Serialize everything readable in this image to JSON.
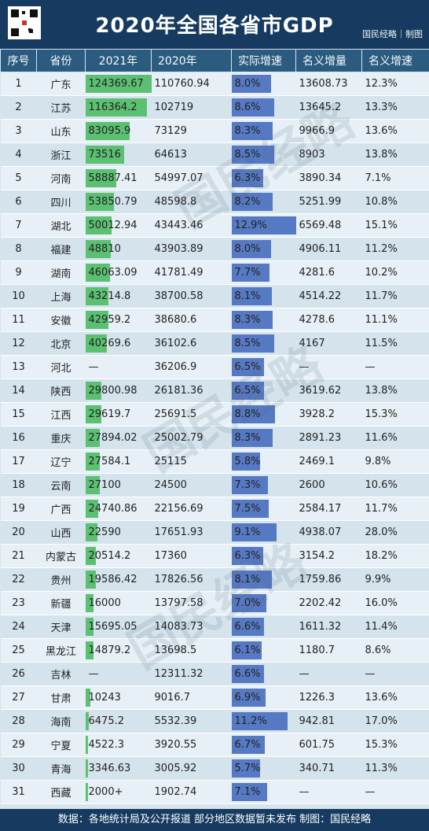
{
  "title": "2020年全国各省市GDP",
  "brand": "国民经略｜制图",
  "columns": [
    "序号",
    "省份",
    "2021年",
    "2020年",
    "实际增速",
    "名义增量",
    "名义增速"
  ],
  "footer": "数据：各地统计局及公开报道 部分地区数据暂未发布 制图：国民经略",
  "watermark": "国民经略",
  "rows": [
    {
      "seq": "1",
      "prov": "广东",
      "v2021": "124369.67",
      "v2020": "110760.94",
      "real": "8.0%",
      "nom_inc": "13608.73",
      "nom_rate": "12.3%"
    },
    {
      "seq": "2",
      "prov": "江苏",
      "v2021": "116364.2",
      "v2020": "102719",
      "real": "8.6%",
      "nom_inc": "13645.2",
      "nom_rate": "13.3%"
    },
    {
      "seq": "3",
      "prov": "山东",
      "v2021": "83095.9",
      "v2020": "73129",
      "real": "8.3%",
      "nom_inc": "9966.9",
      "nom_rate": "13.6%"
    },
    {
      "seq": "4",
      "prov": "浙江",
      "v2021": "73516",
      "v2020": "64613",
      "real": "8.5%",
      "nom_inc": "8903",
      "nom_rate": "13.8%"
    },
    {
      "seq": "5",
      "prov": "河南",
      "v2021": "58887.41",
      "v2020": "54997.07",
      "real": "6.3%",
      "nom_inc": "3890.34",
      "nom_rate": "7.1%"
    },
    {
      "seq": "6",
      "prov": "四川",
      "v2021": "53850.79",
      "v2020": "48598.8",
      "real": "8.2%",
      "nom_inc": "5251.99",
      "nom_rate": "10.8%"
    },
    {
      "seq": "7",
      "prov": "湖北",
      "v2021": "50012.94",
      "v2020": "43443.46",
      "real": "12.9%",
      "nom_inc": "6569.48",
      "nom_rate": "15.1%"
    },
    {
      "seq": "8",
      "prov": "福建",
      "v2021": "48810",
      "v2020": "43903.89",
      "real": "8.0%",
      "nom_inc": "4906.11",
      "nom_rate": "11.2%"
    },
    {
      "seq": "9",
      "prov": "湖南",
      "v2021": "46063.09",
      "v2020": "41781.49",
      "real": "7.7%",
      "nom_inc": "4281.6",
      "nom_rate": "10.2%"
    },
    {
      "seq": "10",
      "prov": "上海",
      "v2021": "43214.8",
      "v2020": "38700.58",
      "real": "8.1%",
      "nom_inc": "4514.22",
      "nom_rate": "11.7%"
    },
    {
      "seq": "11",
      "prov": "安徽",
      "v2021": "42959.2",
      "v2020": "38680.6",
      "real": "8.3%",
      "nom_inc": "4278.6",
      "nom_rate": "11.1%"
    },
    {
      "seq": "12",
      "prov": "北京",
      "v2021": "40269.6",
      "v2020": "36102.6",
      "real": "8.5%",
      "nom_inc": "4167",
      "nom_rate": "11.5%"
    },
    {
      "seq": "13",
      "prov": "河北",
      "v2021": "—",
      "v2020": "36206.9",
      "real": "6.5%",
      "nom_inc": "—",
      "nom_rate": "—"
    },
    {
      "seq": "14",
      "prov": "陕西",
      "v2021": "29800.98",
      "v2020": "26181.36",
      "real": "6.5%",
      "nom_inc": "3619.62",
      "nom_rate": "13.8%"
    },
    {
      "seq": "15",
      "prov": "江西",
      "v2021": "29619.7",
      "v2020": "25691.5",
      "real": "8.8%",
      "nom_inc": "3928.2",
      "nom_rate": "15.3%"
    },
    {
      "seq": "16",
      "prov": "重庆",
      "v2021": "27894.02",
      "v2020": "25002.79",
      "real": "8.3%",
      "nom_inc": "2891.23",
      "nom_rate": "11.6%"
    },
    {
      "seq": "17",
      "prov": "辽宁",
      "v2021": "27584.1",
      "v2020": "25115",
      "real": "5.8%",
      "nom_inc": "2469.1",
      "nom_rate": "9.8%"
    },
    {
      "seq": "18",
      "prov": "云南",
      "v2021": "27100",
      "v2020": "24500",
      "real": "7.3%",
      "nom_inc": "2600",
      "nom_rate": "10.6%"
    },
    {
      "seq": "19",
      "prov": "广西",
      "v2021": "24740.86",
      "v2020": "22156.69",
      "real": "7.5%",
      "nom_inc": "2584.17",
      "nom_rate": "11.7%"
    },
    {
      "seq": "20",
      "prov": "山西",
      "v2021": "22590",
      "v2020": "17651.93",
      "real": "9.1%",
      "nom_inc": "4938.07",
      "nom_rate": "28.0%"
    },
    {
      "seq": "21",
      "prov": "内蒙古",
      "v2021": "20514.2",
      "v2020": "17360",
      "real": "6.3%",
      "nom_inc": "3154.2",
      "nom_rate": "18.2%"
    },
    {
      "seq": "22",
      "prov": "贵州",
      "v2021": "19586.42",
      "v2020": "17826.56",
      "real": "8.1%",
      "nom_inc": "1759.86",
      "nom_rate": "9.9%"
    },
    {
      "seq": "23",
      "prov": "新疆",
      "v2021": "16000",
      "v2020": "13797.58",
      "real": "7.0%",
      "nom_inc": "2202.42",
      "nom_rate": "16.0%"
    },
    {
      "seq": "24",
      "prov": "天津",
      "v2021": "15695.05",
      "v2020": "14083.73",
      "real": "6.6%",
      "nom_inc": "1611.32",
      "nom_rate": "11.4%"
    },
    {
      "seq": "25",
      "prov": "黑龙江",
      "v2021": "14879.2",
      "v2020": "13698.5",
      "real": "6.1%",
      "nom_inc": "1180.7",
      "nom_rate": "8.6%"
    },
    {
      "seq": "26",
      "prov": "吉林",
      "v2021": "—",
      "v2020": "12311.32",
      "real": "6.6%",
      "nom_inc": "—",
      "nom_rate": "—"
    },
    {
      "seq": "27",
      "prov": "甘肃",
      "v2021": "10243",
      "v2020": "9016.7",
      "real": "6.9%",
      "nom_inc": "1226.3",
      "nom_rate": "13.6%"
    },
    {
      "seq": "28",
      "prov": "海南",
      "v2021": "6475.2",
      "v2020": "5532.39",
      "real": "11.2%",
      "nom_inc": "942.81",
      "nom_rate": "17.0%"
    },
    {
      "seq": "29",
      "prov": "宁夏",
      "v2021": "4522.3",
      "v2020": "3920.55",
      "real": "6.7%",
      "nom_inc": "601.75",
      "nom_rate": "15.3%"
    },
    {
      "seq": "30",
      "prov": "青海",
      "v2021": "3346.63",
      "v2020": "3005.92",
      "real": "5.7%",
      "nom_inc": "340.71",
      "nom_rate": "11.3%"
    },
    {
      "seq": "31",
      "prov": "西藏",
      "v2021": "2000+",
      "v2020": "1902.74",
      "real": "7.1%",
      "nom_inc": "—",
      "nom_rate": "—"
    }
  ]
}
